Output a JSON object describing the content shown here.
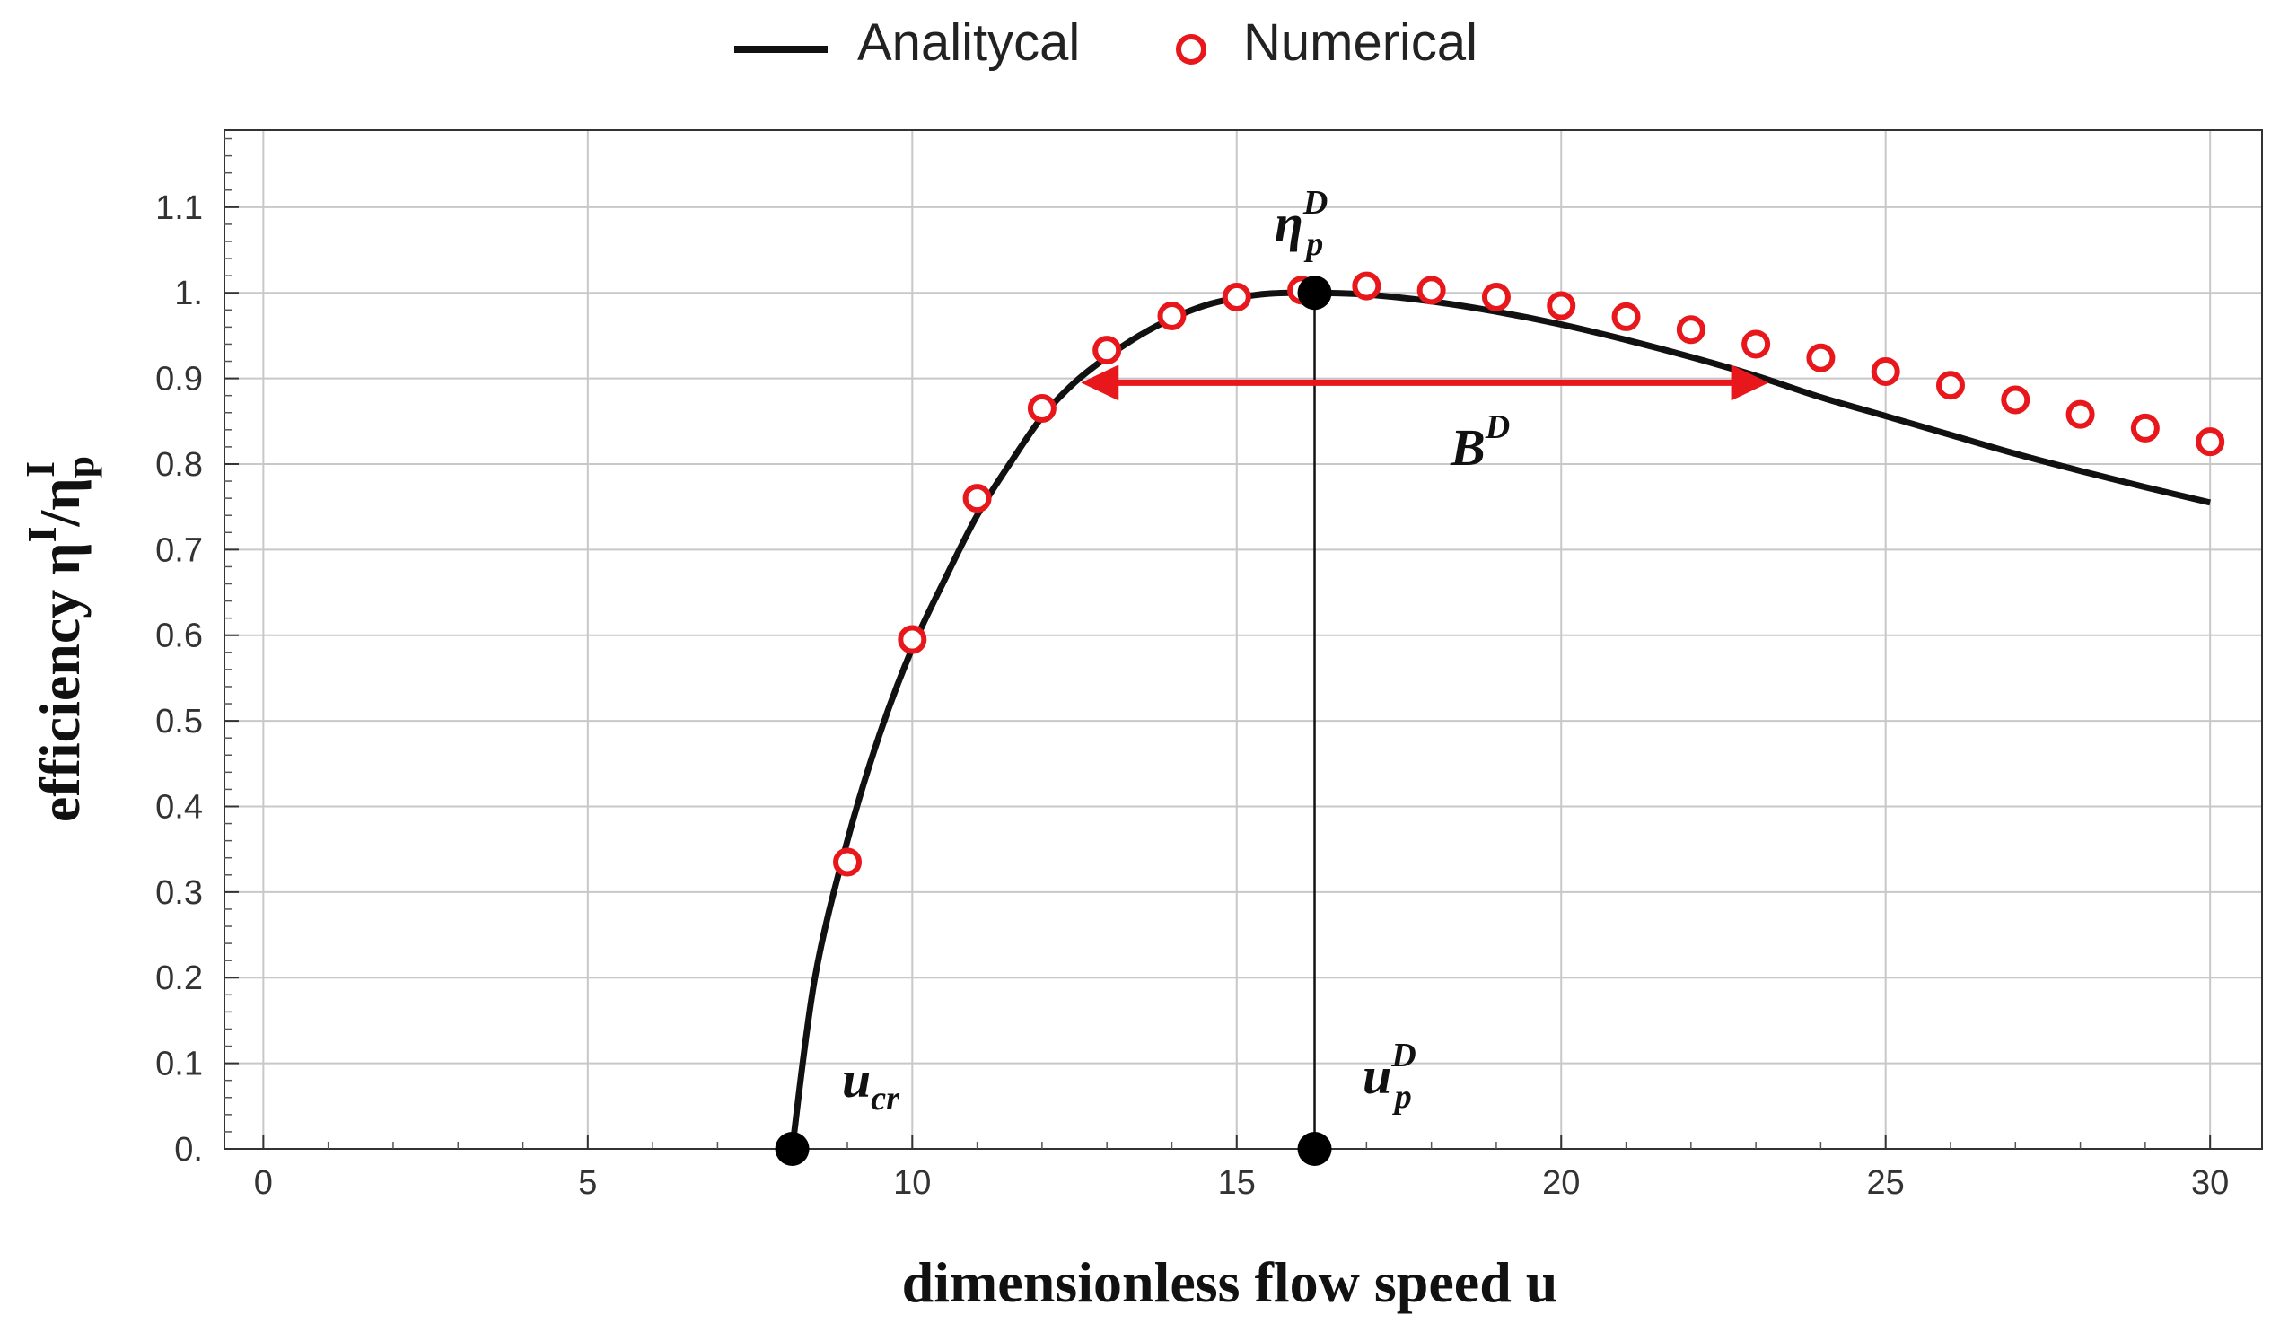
{
  "chart_data": {
    "type": "line",
    "title": "",
    "xlabel": "dimensionless flow speed u",
    "ylabel": "efficiency η",
    "ylabel_sup": "I",
    "ylabel_slash": "/η",
    "ylabel_sub_p": "p",
    "ylabel_sup2": "I",
    "xlim": [
      -0.6,
      30.8
    ],
    "ylim": [
      0,
      1.19
    ],
    "x_ticks": [
      0,
      5,
      10,
      15,
      20,
      25,
      30
    ],
    "x_tick_labels": [
      "0",
      "5",
      "10",
      "15",
      "20",
      "25",
      "30"
    ],
    "y_ticks": [
      0,
      0.1,
      0.2,
      0.3,
      0.4,
      0.5,
      0.6,
      0.7,
      0.8,
      0.9,
      1.0,
      1.1
    ],
    "y_tick_labels": [
      "0.",
      "0.1",
      "0.2",
      "0.3",
      "0.4",
      "0.5",
      "0.6",
      "0.7",
      "0.8",
      "0.9",
      "1.",
      "1.1"
    ],
    "grid": true,
    "legend_position": "top-center",
    "series": [
      {
        "name": "Analitycal",
        "style": "line",
        "color": "#111111",
        "x": [
          8.15,
          8.5,
          9.0,
          9.5,
          10.0,
          10.5,
          11.0,
          11.5,
          12.0,
          12.5,
          13.0,
          13.5,
          14.0,
          14.5,
          15.0,
          15.5,
          16.2,
          17.0,
          18.0,
          19.0,
          20.0,
          21.0,
          22.0,
          23.0,
          24.0,
          25.0,
          26.0,
          27.0,
          28.0,
          29.0,
          30.0
        ],
        "y": [
          0.0,
          0.2,
          0.36,
          0.485,
          0.585,
          0.665,
          0.74,
          0.8,
          0.855,
          0.895,
          0.925,
          0.95,
          0.97,
          0.985,
          0.994,
          0.999,
          1.0,
          0.998,
          0.99,
          0.978,
          0.963,
          0.945,
          0.925,
          0.903,
          0.878,
          0.856,
          0.834,
          0.812,
          0.792,
          0.773,
          0.755
        ]
      },
      {
        "name": "Numerical",
        "style": "marker-open-circle",
        "color": "#e8171c",
        "x": [
          9,
          10,
          11,
          12,
          13,
          14,
          15,
          16,
          17,
          18,
          19,
          20,
          21,
          22,
          23,
          24,
          25,
          26,
          27,
          28,
          29,
          30
        ],
        "y": [
          0.335,
          0.595,
          0.76,
          0.865,
          0.933,
          0.973,
          0.995,
          1.003,
          1.008,
          1.003,
          0.995,
          0.985,
          0.972,
          0.957,
          0.94,
          0.924,
          0.908,
          0.892,
          0.875,
          0.858,
          0.842,
          0.826
        ]
      }
    ],
    "key_points": [
      {
        "name": "u_cr",
        "x": 8.15,
        "y": 0
      },
      {
        "name": "eta_p_D",
        "x": 16.2,
        "y": 1.0
      },
      {
        "name": "u_p_D",
        "x": 16.2,
        "y": 0
      }
    ],
    "vline": {
      "x": 16.2,
      "y0": 0,
      "y1": 1.0
    },
    "bandwidth_arrow": {
      "x0": 12.6,
      "x1": 23.2,
      "y": 0.895,
      "color": "#e8171c"
    },
    "annotations": {
      "u_cr": {
        "main": "u",
        "sub": "cr"
      },
      "eta_p_D": {
        "main": "η",
        "sub": "p",
        "sup": "D"
      },
      "u_p_D": {
        "main": "u",
        "sub": "p",
        "sup": "D"
      },
      "B_D": {
        "main": "B",
        "sup": "D"
      }
    }
  }
}
